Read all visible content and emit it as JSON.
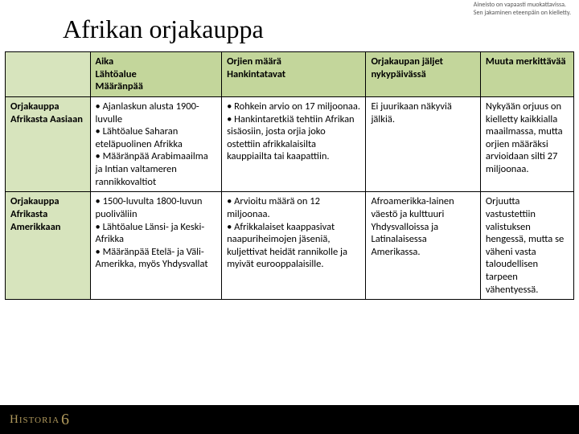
{
  "disclaimer": {
    "line1": "Aineisto on vapaasti muokattavissa.",
    "line2": "Sen jakaminen eteenpäin on kielletty."
  },
  "title": "Afrikan orjakauppa",
  "table": {
    "header_bg": "#c3d69b",
    "rowlabel_bg": "#d7e4bd",
    "border_color": "#000000",
    "font_size": 12.5,
    "columns": [
      "",
      "Aika\nLähtöalue\nMääränpää",
      "Orjien määrä\nHankintatavat",
      "Orjakaupan jäljet nykypäivässä",
      "Muuta merkittävää"
    ],
    "rows": [
      {
        "label": "Orjakauppa Afrikasta Aasiaan",
        "cells": [
          "• Ajanlaskun alusta 1900-luvulle\n• Lähtöalue Saharan eteläpuolinen Afrikka\n• Määränpää Arabimaailma ja Intian valtameren rannikkovaltiot",
          "• Rohkein arvio on 17 miljoonaa.\n• Hankintaretkiä tehtiin Afrikan sisäosiin, josta orjia joko ostettiin afrikkalaisilta kauppiailta tai kaapattiin.",
          "Ei juurikaan näkyviä jälkiä.",
          "Nykyään orjuus on kielletty kaikkialla maailmassa, mutta orjien määräksi arvioidaan silti 27 miljoonaa."
        ]
      },
      {
        "label": "Orjakauppa Afrikasta Amerikkaan",
        "cells": [
          "• 1500-luvulta 1800-luvun puoliväliin\n• Lähtöalue Länsi- ja Keski-Afrikka\n• Määränpää Etelä- ja Väli-Amerikka, myös Yhdysvallat",
          "• Arvioitu määrä on 12 miljoonaa.\n• Afrikkalaiset kaappasivat naapuriheimojen jäseniä, kuljettivat heidät rannikolle ja myivät eurooppalaisille.",
          "Afroamerikka-lainen väestö ja kulttuuri Yhdysvalloissa ja Latinalaisessa Amerikassa.",
          "Orjuutta vastustettiin valistuksen hengessä, mutta se väheni vasta taloudellisen tarpeen vähentyessä."
        ]
      }
    ]
  },
  "footer": {
    "brand": "Historia",
    "num": "6"
  }
}
